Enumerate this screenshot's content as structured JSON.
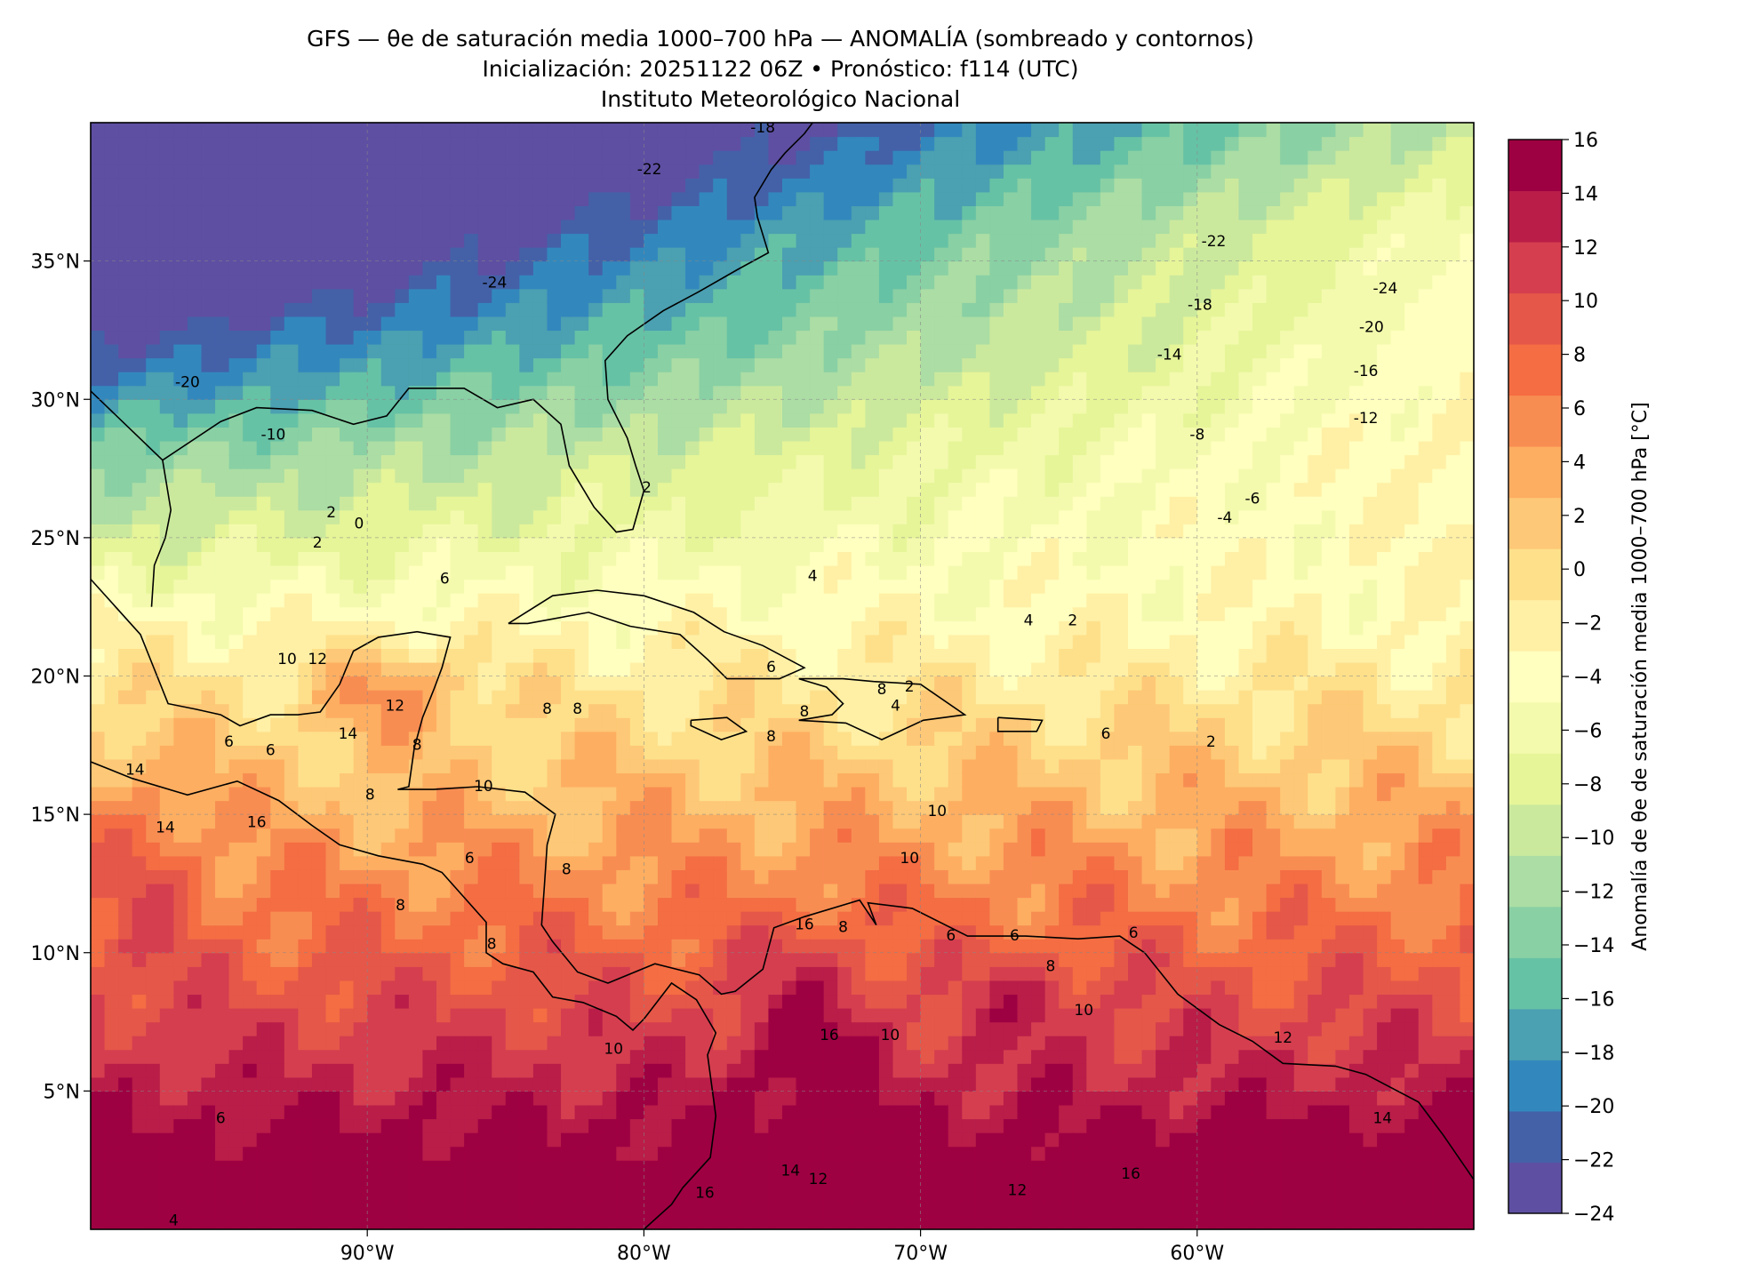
{
  "titles": {
    "line1": "GFS — θe de saturación media 1000–700 hPa — ANOMALÍA (sombreado y contornos)",
    "line2": "Inicialización: 20251122 06Z   •   Pronóstico: f114 (UTC)",
    "line3": "Instituto Meteorológico Nacional"
  },
  "map": {
    "lon_range": [
      -100,
      -50
    ],
    "lat_range": [
      0,
      40
    ],
    "lon_ticks": [
      {
        "value": -90,
        "label": "90°W"
      },
      {
        "value": -80,
        "label": "80°W"
      },
      {
        "value": -70,
        "label": "70°W"
      },
      {
        "value": -60,
        "label": "60°W"
      }
    ],
    "lat_ticks": [
      {
        "value": 35,
        "label": "35°N"
      },
      {
        "value": 30,
        "label": "30°N"
      },
      {
        "value": 25,
        "label": "25°N"
      },
      {
        "value": 20,
        "label": "20°N"
      },
      {
        "value": 15,
        "label": "15°N"
      },
      {
        "value": 10,
        "label": "10°N"
      },
      {
        "value": 5,
        "label": "5°N"
      }
    ],
    "grid": true
  },
  "colorbar": {
    "label": "Anomalía de θe de saturación media 1000–700 hPa [°C]",
    "levels": [
      -24,
      -22,
      -20,
      -18,
      -16,
      -14,
      -12,
      -10,
      -8,
      -6,
      -4,
      -2,
      0,
      2,
      4,
      6,
      8,
      10,
      12,
      14,
      16
    ],
    "tick_labels": [
      "−24",
      "−22",
      "−20",
      "−18",
      "−16",
      "−14",
      "−12",
      "−10",
      "−8",
      "−6",
      "−4",
      "−2",
      "0",
      "2",
      "4",
      "6",
      "8",
      "10",
      "12",
      "14",
      "16"
    ],
    "colors": [
      "#5e4fa2",
      "#4461a8",
      "#3288bd",
      "#4ba0b1",
      "#66c2a5",
      "#89d0a4",
      "#abdda4",
      "#cbe99d",
      "#e6f598",
      "#f3faad",
      "#ffffbf",
      "#fff0a6",
      "#fee08b",
      "#fdc877",
      "#fdae61",
      "#f88d52",
      "#f46d43",
      "#e55749",
      "#d53e4f",
      "#b91d48",
      "#9e0142"
    ]
  },
  "contour_labels": [
    {
      "text": "-18",
      "lon": -75.7,
      "lat": 39.8
    },
    {
      "text": "-22",
      "lon": -79.8,
      "lat": 38.3
    },
    {
      "text": "-24",
      "lon": -85.4,
      "lat": 34.2
    },
    {
      "text": "-22",
      "lon": -59.4,
      "lat": 35.7
    },
    {
      "text": "-24",
      "lon": -53.2,
      "lat": 34.0
    },
    {
      "text": "-18",
      "lon": -59.9,
      "lat": 33.4
    },
    {
      "text": "-20",
      "lon": -53.7,
      "lat": 32.6
    },
    {
      "text": "-14",
      "lon": -61.0,
      "lat": 31.6
    },
    {
      "text": "-16",
      "lon": -53.9,
      "lat": 31.0
    },
    {
      "text": "-12",
      "lon": -53.9,
      "lat": 29.3
    },
    {
      "text": "-8",
      "lon": -60.0,
      "lat": 28.7
    },
    {
      "text": "-6",
      "lon": -58.0,
      "lat": 26.4
    },
    {
      "text": "-4",
      "lon": -59.0,
      "lat": 25.7
    },
    {
      "text": "-20",
      "lon": -96.5,
      "lat": 30.6
    },
    {
      "text": "-10",
      "lon": -93.4,
      "lat": 28.7
    },
    {
      "text": "2",
      "lon": -91.3,
      "lat": 25.9
    },
    {
      "text": "0",
      "lon": -90.3,
      "lat": 25.5
    },
    {
      "text": "2",
      "lon": -91.8,
      "lat": 24.8
    },
    {
      "text": "2",
      "lon": -79.9,
      "lat": 26.8
    },
    {
      "text": "6",
      "lon": -87.2,
      "lat": 23.5
    },
    {
      "text": "4",
      "lon": -73.9,
      "lat": 23.6
    },
    {
      "text": "4",
      "lon": -66.1,
      "lat": 22.0
    },
    {
      "text": "2",
      "lon": -64.5,
      "lat": 22.0
    },
    {
      "text": "10",
      "lon": -92.9,
      "lat": 20.6
    },
    {
      "text": "12",
      "lon": -91.8,
      "lat": 20.6
    },
    {
      "text": "12",
      "lon": -89.0,
      "lat": 18.9
    },
    {
      "text": "14",
      "lon": -90.7,
      "lat": 17.9
    },
    {
      "text": "6",
      "lon": -95.0,
      "lat": 17.6
    },
    {
      "text": "6",
      "lon": -93.5,
      "lat": 17.3
    },
    {
      "text": "14",
      "lon": -98.4,
      "lat": 16.6
    },
    {
      "text": "16",
      "lon": -94.0,
      "lat": 14.7
    },
    {
      "text": "14",
      "lon": -97.3,
      "lat": 14.5
    },
    {
      "text": "8",
      "lon": -89.9,
      "lat": 15.7
    },
    {
      "text": "8",
      "lon": -88.2,
      "lat": 17.5
    },
    {
      "text": "10",
      "lon": -85.8,
      "lat": 16.0
    },
    {
      "text": "6",
      "lon": -86.3,
      "lat": 13.4
    },
    {
      "text": "6",
      "lon": -75.4,
      "lat": 20.3
    },
    {
      "text": "8",
      "lon": -83.5,
      "lat": 18.8
    },
    {
      "text": "8",
      "lon": -82.4,
      "lat": 18.8
    },
    {
      "text": "8",
      "lon": -74.2,
      "lat": 18.7
    },
    {
      "text": "8",
      "lon": -75.4,
      "lat": 17.8
    },
    {
      "text": "8",
      "lon": -71.4,
      "lat": 19.5
    },
    {
      "text": "2",
      "lon": -70.4,
      "lat": 19.6
    },
    {
      "text": "4",
      "lon": -70.9,
      "lat": 18.9
    },
    {
      "text": "6",
      "lon": -63.3,
      "lat": 17.9
    },
    {
      "text": "2",
      "lon": -59.5,
      "lat": 17.6
    },
    {
      "text": "10",
      "lon": -69.4,
      "lat": 15.1
    },
    {
      "text": "10",
      "lon": -70.4,
      "lat": 13.4
    },
    {
      "text": "8",
      "lon": -82.8,
      "lat": 13.0
    },
    {
      "text": "8",
      "lon": -88.8,
      "lat": 11.7
    },
    {
      "text": "8",
      "lon": -85.5,
      "lat": 10.3
    },
    {
      "text": "16",
      "lon": -74.2,
      "lat": 11.0
    },
    {
      "text": "8",
      "lon": -72.8,
      "lat": 10.9
    },
    {
      "text": "6",
      "lon": -66.6,
      "lat": 10.6
    },
    {
      "text": "6",
      "lon": -68.9,
      "lat": 10.6
    },
    {
      "text": "8",
      "lon": -65.3,
      "lat": 9.5
    },
    {
      "text": "6",
      "lon": -62.3,
      "lat": 10.7
    },
    {
      "text": "10",
      "lon": -64.1,
      "lat": 7.9
    },
    {
      "text": "10",
      "lon": -71.1,
      "lat": 7.0
    },
    {
      "text": "16",
      "lon": -73.3,
      "lat": 7.0
    },
    {
      "text": "12",
      "lon": -56.9,
      "lat": 6.9
    },
    {
      "text": "10",
      "lon": -81.1,
      "lat": 6.5
    },
    {
      "text": "6",
      "lon": -95.3,
      "lat": 4.0
    },
    {
      "text": "14",
      "lon": -53.3,
      "lat": 4.0
    },
    {
      "text": "12",
      "lon": -73.7,
      "lat": 1.8
    },
    {
      "text": "16",
      "lon": -77.8,
      "lat": 1.3
    },
    {
      "text": "12",
      "lon": -66.5,
      "lat": 1.4
    },
    {
      "text": "16",
      "lon": -62.4,
      "lat": 2.0
    },
    {
      "text": "14",
      "lon": -74.7,
      "lat": 2.1
    },
    {
      "text": "4",
      "lon": -97.0,
      "lat": 0.3
    }
  ]
}
